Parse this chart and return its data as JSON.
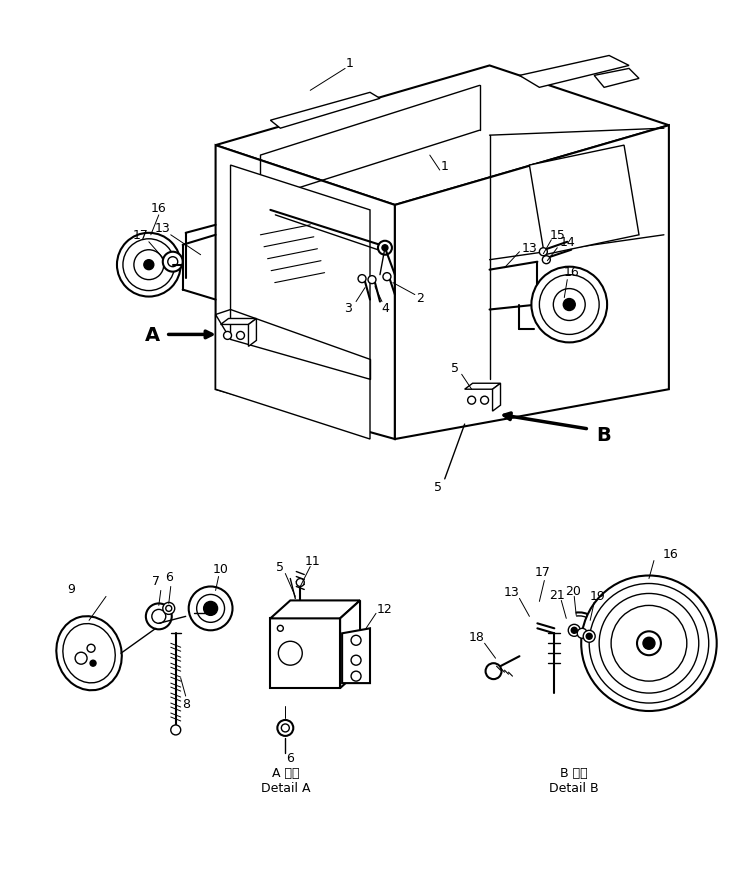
{
  "bg_color": "#ffffff",
  "lc": "#000000",
  "fig_width": 7.43,
  "fig_height": 8.95,
  "dpi": 100,
  "detail_a_jp": "A 詳細",
  "detail_a_en": "Detail A",
  "detail_b_jp": "B 詳細",
  "detail_b_en": "Detail B"
}
